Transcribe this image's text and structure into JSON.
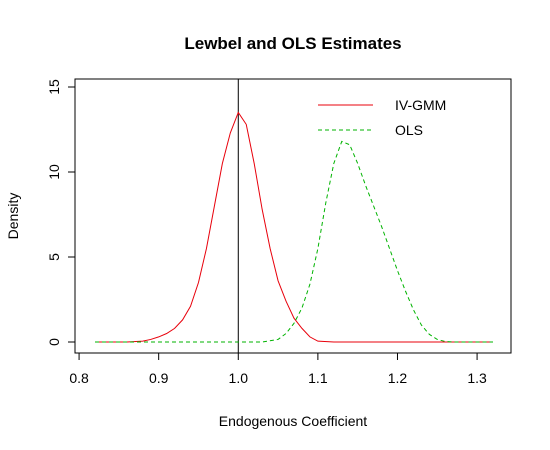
{
  "chart_data": {
    "type": "line",
    "title": "Lewbel and OLS Estimates",
    "xlabel": "Endogenous Coefficient",
    "ylabel": "Density",
    "xlim": [
      0.82,
      1.32
    ],
    "ylim": [
      0,
      15
    ],
    "x_ticks": [
      "0.8",
      "0.9",
      "1.0",
      "1.1",
      "1.2",
      "1.3"
    ],
    "x_tick_values": [
      0.8,
      0.9,
      1.0,
      1.1,
      1.2,
      1.3
    ],
    "y_ticks": [
      "0",
      "5",
      "10",
      "15"
    ],
    "y_tick_values": [
      0,
      5,
      10,
      15
    ],
    "vline": 1.0,
    "legend_position": "top-right",
    "series": [
      {
        "name": "IV-GMM",
        "color": "#e8000b",
        "dash": "solid",
        "points": [
          [
            0.82,
            0
          ],
          [
            0.86,
            0
          ],
          [
            0.88,
            0.05
          ],
          [
            0.89,
            0.15
          ],
          [
            0.9,
            0.3
          ],
          [
            0.91,
            0.5
          ],
          [
            0.92,
            0.8
          ],
          [
            0.93,
            1.3
          ],
          [
            0.94,
            2.1
          ],
          [
            0.95,
            3.5
          ],
          [
            0.96,
            5.5
          ],
          [
            0.97,
            8.0
          ],
          [
            0.98,
            10.5
          ],
          [
            0.99,
            12.3
          ],
          [
            1.0,
            13.5
          ],
          [
            1.01,
            12.8
          ],
          [
            1.02,
            10.5
          ],
          [
            1.03,
            7.8
          ],
          [
            1.04,
            5.5
          ],
          [
            1.05,
            3.6
          ],
          [
            1.06,
            2.4
          ],
          [
            1.07,
            1.4
          ],
          [
            1.08,
            0.8
          ],
          [
            1.09,
            0.3
          ],
          [
            1.1,
            0.05
          ],
          [
            1.12,
            0
          ],
          [
            1.32,
            0
          ]
        ]
      },
      {
        "name": "OLS",
        "color": "#00b300",
        "dash": "dashed",
        "points": [
          [
            0.82,
            0
          ],
          [
            1.03,
            0
          ],
          [
            1.05,
            0.15
          ],
          [
            1.06,
            0.5
          ],
          [
            1.07,
            1.1
          ],
          [
            1.08,
            2.0
          ],
          [
            1.09,
            3.4
          ],
          [
            1.1,
            5.5
          ],
          [
            1.11,
            8.2
          ],
          [
            1.12,
            10.5
          ],
          [
            1.13,
            11.8
          ],
          [
            1.14,
            11.6
          ],
          [
            1.15,
            10.5
          ],
          [
            1.16,
            9.2
          ],
          [
            1.17,
            8.0
          ],
          [
            1.18,
            6.8
          ],
          [
            1.19,
            5.5
          ],
          [
            1.2,
            4.2
          ],
          [
            1.21,
            3.0
          ],
          [
            1.22,
            1.9
          ],
          [
            1.23,
            1.0
          ],
          [
            1.24,
            0.45
          ],
          [
            1.25,
            0.15
          ],
          [
            1.26,
            0.03
          ],
          [
            1.27,
            0
          ],
          [
            1.32,
            0
          ]
        ]
      }
    ]
  }
}
